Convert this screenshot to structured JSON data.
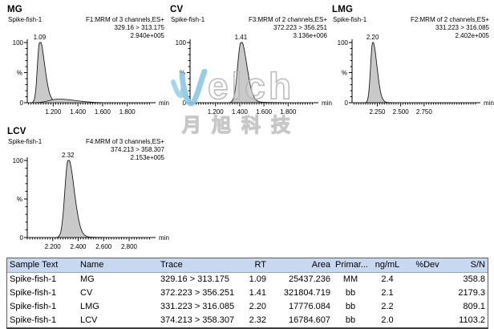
{
  "chart_data": {
    "type": "area",
    "x_axis_unit": "min",
    "y_axis": {
      "top": "100",
      "mid": "%",
      "bottom": "0"
    },
    "panels": [
      {
        "name": "MG",
        "sample": "Spike-fish-1",
        "acq": "F1:MRM of 3 channels,ES+",
        "transition": "329.16 > 313.175",
        "intensity": "2.940e+005",
        "peak_rt": 1.09,
        "peak_label": "1.09",
        "x_min": 0.99,
        "x_max": 1.99,
        "tick_values": [
          1.2,
          1.4,
          1.6,
          1.8
        ],
        "tick_labels": [
          "1.200",
          "1.400",
          "1.600",
          "1.800"
        ],
        "minor_step": 0.02,
        "sigma_left": 0.018,
        "sigma_right": 0.04,
        "tail_amp": 0.05,
        "tail_tau": 0.13,
        "secondary": {
          "rt": 1.24,
          "h": 0.06,
          "sl": 0.07,
          "sr": 0.14
        },
        "x_unit": "min"
      },
      {
        "name": "CV",
        "sample": "Spike-fish-1",
        "acq": "F3:MRM of 2 channels,ES+",
        "transition": "372.223 > 356.251",
        "intensity": "3.136e+006",
        "peak_rt": 1.41,
        "peak_label": "1.41",
        "x_min": 0.99,
        "x_max": 2.01,
        "tick_values": [
          1.2,
          1.4,
          1.6,
          1.8
        ],
        "tick_labels": [
          "1.200",
          "1.400",
          "1.600",
          "1.800"
        ],
        "minor_step": 0.02,
        "sigma_left": 0.027,
        "sigma_right": 0.048,
        "tail_amp": 0.045,
        "tail_tau": 0.1,
        "secondary": null,
        "x_unit": "min"
      },
      {
        "name": "LMG",
        "sample": "Spike-fish-1",
        "acq": "F2:MRM of 2 channels,ES+",
        "transition": "331.223 > 316.085",
        "intensity": "2.402e+005",
        "peak_rt": 2.2,
        "peak_label": "2.20",
        "x_min": 1.98,
        "x_max": 3.3,
        "tick_values": [
          2.25,
          2.5,
          2.75
        ],
        "tick_labels": [
          "2.250",
          "2.500",
          "2.750"
        ],
        "minor_step": 0.025,
        "sigma_left": 0.022,
        "sigma_right": 0.045,
        "tail_amp": 0.03,
        "tail_tau": 0.07,
        "secondary": null,
        "x_unit": "min"
      },
      {
        "name": "LCV",
        "sample": "Spike-fish-1",
        "acq": "F4:MRM of 3 channels,ES+",
        "transition": "374.213 > 358.307",
        "intensity": "2.153e+005",
        "peak_rt": 2.32,
        "peak_label": "2.32",
        "x_min": 2.0,
        "x_max": 2.97,
        "tick_values": [
          2.2,
          2.4,
          2.6,
          2.8
        ],
        "tick_labels": [
          "2.200",
          "2.400",
          "2.600",
          "2.800"
        ],
        "minor_step": 0.02,
        "sigma_left": 0.025,
        "sigma_right": 0.048,
        "tail_amp": 0.04,
        "tail_tau": 0.08,
        "secondary": null,
        "x_unit": "min"
      }
    ]
  },
  "watermark": {
    "brand_rest": "elch",
    "cn_chars": "月旭科技"
  },
  "table": {
    "headers": [
      "Sample Text",
      "Name",
      "Trace",
      "RT",
      "Area",
      "Primar...",
      "ng/mL",
      "%Dev",
      "S/N"
    ],
    "rows": [
      [
        "Spike-fish-1",
        "MG",
        "329.16 > 313.175",
        "1.09",
        "25437.236",
        "MM",
        "2.4",
        "",
        "358.8"
      ],
      [
        "Spike-fish-1",
        "CV",
        "372.223 > 356.251",
        "1.41",
        "321804.719",
        "bb",
        "2.1",
        "",
        "2179.3"
      ],
      [
        "Spike-fish-1",
        "LMG",
        "331.223 > 316.085",
        "2.20",
        "17776.084",
        "bb",
        "2.2",
        "",
        "809.1"
      ],
      [
        "Spike-fish-1",
        "LCV",
        "374.213 > 358.307",
        "2.32",
        "16784.607",
        "bb",
        "2.0",
        "",
        "1103.2"
      ]
    ]
  },
  "colors": {
    "peak_fill": "#c9c9c9",
    "peak_stroke": "#1a1a1a",
    "table_header_bg": "#c8d8f0",
    "watermark_blue": "#8cc6e4"
  }
}
